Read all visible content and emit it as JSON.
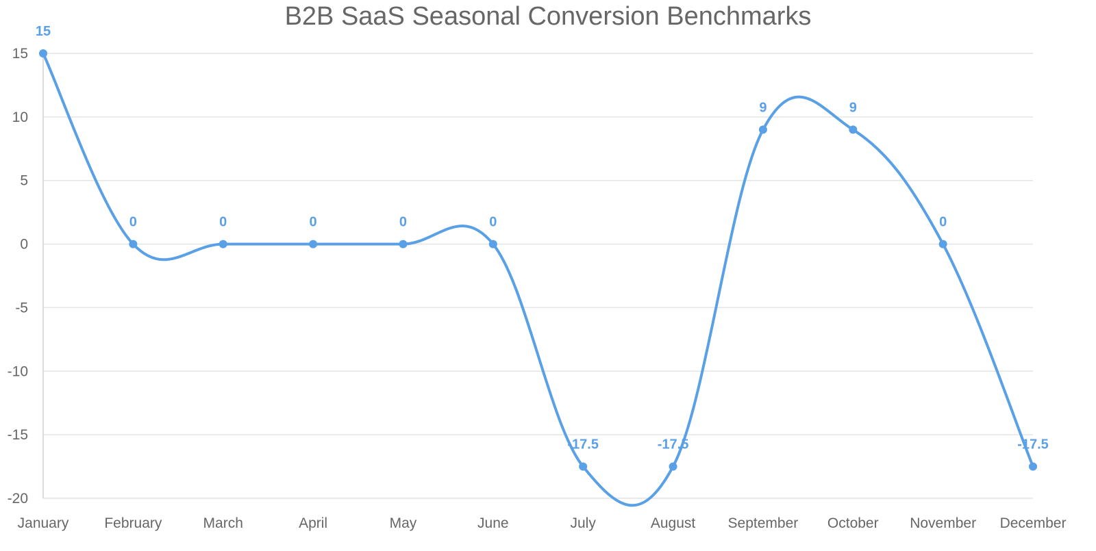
{
  "chart_data": {
    "type": "line",
    "title": "B2B SaaS Seasonal Conversion Benchmarks",
    "xlabel": "",
    "ylabel": "",
    "categories": [
      "January",
      "February",
      "March",
      "April",
      "May",
      "June",
      "July",
      "August",
      "September",
      "October",
      "November",
      "December"
    ],
    "series": [
      {
        "values": [
          15,
          0,
          0,
          0,
          0,
          0,
          -17.5,
          -17.5,
          9,
          9,
          0,
          -17.5
        ],
        "color": "#5aa0e6"
      }
    ],
    "ylim": [
      -20,
      15
    ],
    "yticks": [
      15,
      10,
      5,
      0,
      -5,
      -10,
      -15,
      -20
    ],
    "grid": true,
    "smooth": true,
    "data_labels": [
      "15",
      "0",
      "0",
      "0",
      "0",
      "0",
      "-17.5",
      "-17.5",
      "9",
      "9",
      "0",
      "-17.5"
    ],
    "legend": "none"
  }
}
